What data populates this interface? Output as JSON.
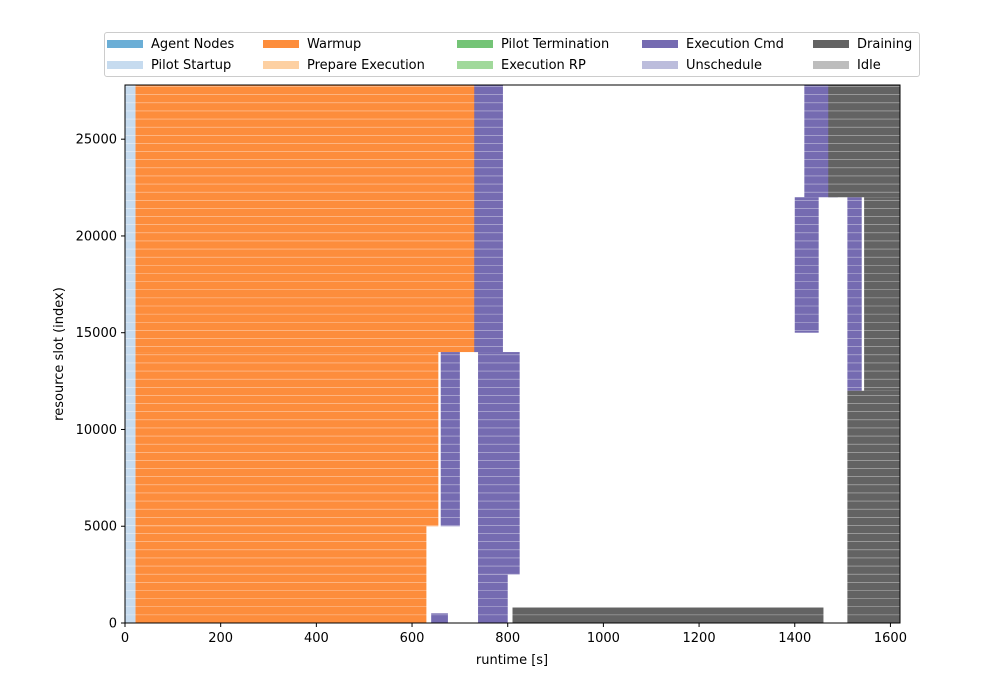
{
  "chart_data": {
    "type": "gantt",
    "xlabel": "runtime [s]",
    "ylabel": "resource slot (index)",
    "xlim": [
      0,
      1620
    ],
    "ylim": [
      0,
      27800
    ],
    "xticks": [
      0,
      200,
      400,
      600,
      800,
      1000,
      1200,
      1400,
      1600
    ],
    "yticks": [
      0,
      5000,
      10000,
      15000,
      20000,
      25000
    ],
    "legend": {
      "placement": "top-center",
      "columns": 5,
      "entries": [
        {
          "name": "Agent Nodes",
          "color": "#6baed6"
        },
        {
          "name": "Pilot Startup",
          "color": "#c6dbef"
        },
        {
          "name": "Warmup",
          "color": "#fd8d3c"
        },
        {
          "name": "Prepare Execution",
          "color": "#fdd0a2"
        },
        {
          "name": "Pilot Termination",
          "color": "#74c476"
        },
        {
          "name": "Execution RP",
          "color": "#a1d99b"
        },
        {
          "name": "Execution Cmd",
          "color": "#756bb1"
        },
        {
          "name": "Unschedule",
          "color": "#bcbddc"
        },
        {
          "name": "Draining",
          "color": "#636363"
        },
        {
          "name": "Idle",
          "color": "#bdbdbd"
        }
      ]
    },
    "series": [
      {
        "name": "Pilot Startup",
        "segments": [
          {
            "y0": 0,
            "y1": 27800,
            "x0": 0,
            "x1": 22
          }
        ]
      },
      {
        "name": "Warmup",
        "segments": [
          {
            "y0": 0,
            "y1": 5000,
            "x0": 22,
            "x1": 630
          },
          {
            "y0": 5000,
            "y1": 14000,
            "x0": 22,
            "x1": 655
          },
          {
            "y0": 14000,
            "y1": 27800,
            "x0": 22,
            "x1": 740
          }
        ]
      },
      {
        "name": "Execution Cmd",
        "segments": [
          {
            "y0": 0,
            "y1": 500,
            "x0": 640,
            "x1": 675
          },
          {
            "y0": 0,
            "y1": 2500,
            "x0": 738,
            "x1": 800
          },
          {
            "y0": 2500,
            "y1": 14000,
            "x0": 738,
            "x1": 825
          },
          {
            "y0": 5000,
            "y1": 14000,
            "x0": 660,
            "x1": 700
          },
          {
            "y0": 14000,
            "y1": 27800,
            "x0": 730,
            "x1": 790
          },
          {
            "y0": 15000,
            "y1": 22000,
            "x0": 1400,
            "x1": 1450
          },
          {
            "y0": 22000,
            "y1": 27800,
            "x0": 1420,
            "x1": 1490
          },
          {
            "y0": 12000,
            "y1": 22000,
            "x0": 1510,
            "x1": 1540
          }
        ]
      },
      {
        "name": "Draining",
        "segments": [
          {
            "y0": 0,
            "y1": 12000,
            "x0": 1510,
            "x1": 1620
          },
          {
            "y0": 12000,
            "y1": 22000,
            "x0": 1545,
            "x1": 1620
          },
          {
            "y0": 22000,
            "y1": 27800,
            "x0": 1470,
            "x1": 1620
          },
          {
            "y0": 0,
            "y1": 800,
            "x0": 810,
            "x1": 1460
          }
        ]
      }
    ]
  }
}
